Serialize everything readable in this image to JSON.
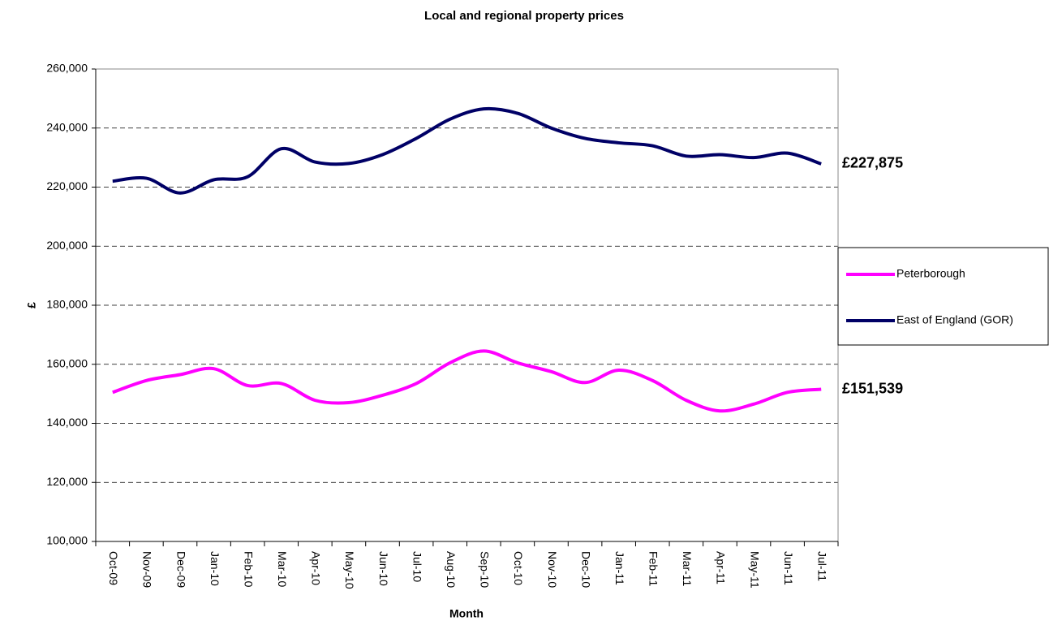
{
  "chart_data": {
    "type": "line",
    "title": "Local and regional property prices",
    "x_label": "Month",
    "y_label": "£",
    "categories": [
      "Oct-09",
      "Nov-09",
      "Dec-09",
      "Jan-10",
      "Feb-10",
      "Mar-10",
      "Apr-10",
      "May-10",
      "Jun-10",
      "Jul-10",
      "Aug-10",
      "Sep-10",
      "Oct-10",
      "Nov-10",
      "Dec-10",
      "Jan-11",
      "Feb-11",
      "Mar-11",
      "Apr-11",
      "May-11",
      "Jun-11",
      "Jul-11"
    ],
    "series": [
      {
        "name": "Peterborough",
        "color": "#ff00ff",
        "values": [
          150500,
          154500,
          156500,
          158500,
          152800,
          153500,
          147800,
          147000,
          149500,
          153500,
          160500,
          164500,
          160500,
          157500,
          153800,
          158000,
          154500,
          147800,
          144200,
          146500,
          150500,
          151539
        ],
        "value_labels": [
          null,
          null,
          null,
          null,
          null,
          null,
          null,
          null,
          null,
          null,
          null,
          null,
          null,
          null,
          null,
          null,
          null,
          null,
          null,
          null,
          null,
          "£151,539"
        ]
      },
      {
        "name": "East of England (GOR)",
        "color": "#000066",
        "values": [
          222000,
          223000,
          218000,
          222500,
          223500,
          233000,
          228500,
          228000,
          231000,
          236500,
          243000,
          246500,
          245000,
          240000,
          236500,
          235000,
          234000,
          230500,
          231000,
          230000,
          231500,
          227875
        ],
        "value_labels": [
          null,
          null,
          null,
          null,
          null,
          null,
          null,
          null,
          null,
          null,
          null,
          null,
          null,
          null,
          null,
          null,
          null,
          null,
          null,
          null,
          null,
          "£227,875"
        ]
      }
    ],
    "ylim": [
      100000,
      260000
    ],
    "yticks": [
      {
        "value": 100000,
        "label": "100,000"
      },
      {
        "value": 120000,
        "label": "120,000"
      },
      {
        "value": 140000,
        "label": "140,000"
      },
      {
        "value": 160000,
        "label": "160,000"
      },
      {
        "value": 180000,
        "label": "180,000"
      },
      {
        "value": 200000,
        "label": "200,000"
      },
      {
        "value": 220000,
        "label": "220,000"
      },
      {
        "value": 240000,
        "label": "240,000"
      },
      {
        "value": 260000,
        "label": "260,000"
      }
    ],
    "grid": true,
    "legend": "right"
  }
}
